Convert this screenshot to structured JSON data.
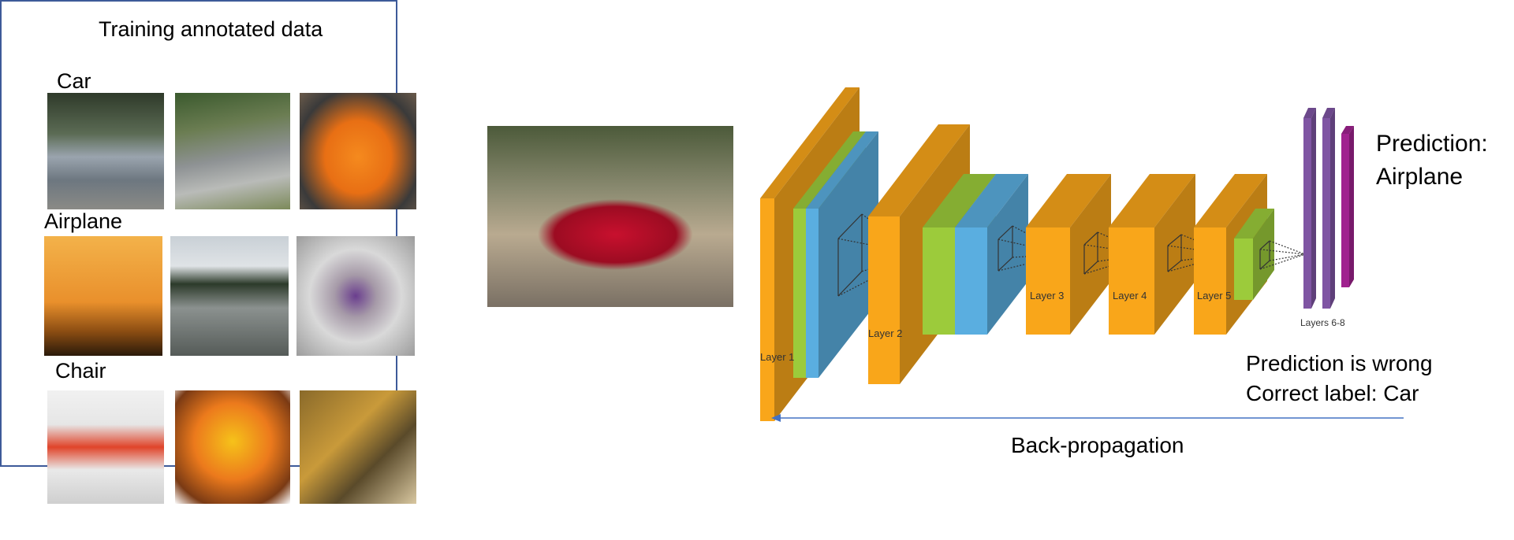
{
  "training": {
    "title": "Training annotated data",
    "categories": [
      {
        "label": "Car",
        "images": [
          "car-photo-1",
          "car-photo-2",
          "car-photo-3"
        ]
      },
      {
        "label": "Airplane",
        "images": [
          "airplane-photo-1",
          "airplane-photo-2",
          "airplane-photo-3"
        ]
      },
      {
        "label": "Chair",
        "images": [
          "chair-photo-1",
          "chair-photo-2",
          "chair-photo-3"
        ]
      }
    ]
  },
  "input_image": "red-sports-car-photo",
  "network": {
    "layers": [
      "Layer 1",
      "Layer 2",
      "Layer 3",
      "Layer 4",
      "Layer 5",
      "Layers 6-8"
    ],
    "colors": {
      "conv": "#f9a61a",
      "norm": "#9ccb3b",
      "pool": "#5aaee0",
      "fc": "#7f55a3",
      "output": "#a0228f"
    }
  },
  "prediction": {
    "line1": "Prediction:",
    "line2": "Airplane"
  },
  "feedback": {
    "line1": "Prediction is wrong",
    "line2": "Correct label: Car"
  },
  "backprop": {
    "label": "Back-propagation",
    "color": "#4472c4"
  }
}
